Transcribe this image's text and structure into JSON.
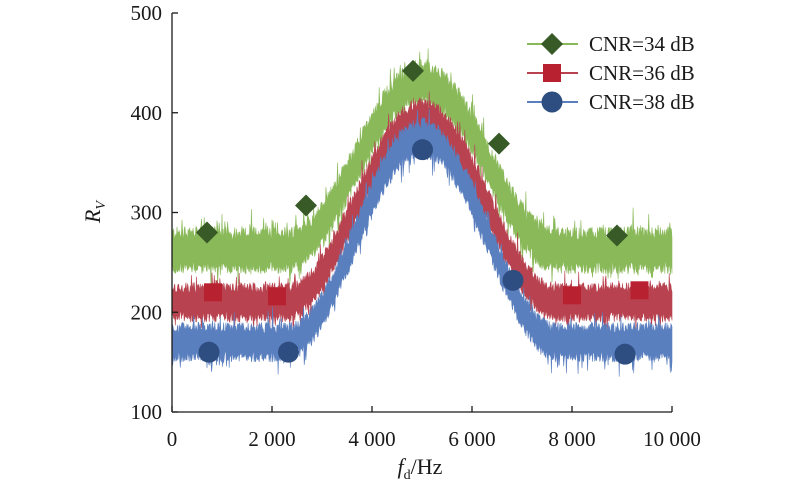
{
  "chart_data": {
    "type": "line",
    "title": "",
    "xlabel": "f_d/Hz",
    "xlabel_parts": {
      "main": "f",
      "sub": "d",
      "unit": "/Hz"
    },
    "ylabel": "R_V",
    "ylabel_parts": {
      "main": "R",
      "sub": "V"
    },
    "xlim": [
      0,
      10000
    ],
    "ylim": [
      100,
      500
    ],
    "xticks": [
      0,
      2000,
      4000,
      6000,
      8000,
      10000
    ],
    "xtick_labels": [
      "0",
      "2 000",
      "4 000",
      "6 000",
      "8 000",
      "10 000"
    ],
    "yticks": [
      100,
      200,
      300,
      400,
      500
    ],
    "ytick_labels": [
      "100",
      "200",
      "300",
      "400",
      "500"
    ],
    "grid": false,
    "legend_position": "top-right",
    "series": [
      {
        "name": "CNR=34 dB",
        "marker": "diamond",
        "color": "#8ab95a",
        "marker_color": "#375a27",
        "baseline": 262,
        "peak": 430,
        "noise_amplitude": 24,
        "markers": [
          {
            "x": 700,
            "y": 280
          },
          {
            "x": 2680,
            "y": 307
          },
          {
            "x": 4820,
            "y": 442
          },
          {
            "x": 6540,
            "y": 369
          },
          {
            "x": 8900,
            "y": 277
          }
        ]
      },
      {
        "name": "CNR=36 dB",
        "marker": "square",
        "color": "#b8424f",
        "marker_color": "#b82230",
        "baseline": 210,
        "peak": 395,
        "noise_amplitude": 20,
        "markers": [
          {
            "x": 820,
            "y": 220
          },
          {
            "x": 2100,
            "y": 216
          },
          {
            "x": 8000,
            "y": 217
          },
          {
            "x": 9350,
            "y": 222
          }
        ]
      },
      {
        "name": "CNR=38 dB",
        "marker": "circle",
        "color": "#5a7fbf",
        "marker_color": "#2e4d80",
        "baseline": 170,
        "peak": 375,
        "noise_amplitude": 20,
        "markers": [
          {
            "x": 740,
            "y": 160
          },
          {
            "x": 2330,
            "y": 160
          },
          {
            "x": 5010,
            "y": 363
          },
          {
            "x": 6820,
            "y": 232
          },
          {
            "x": 9060,
            "y": 158
          }
        ]
      }
    ],
    "transition": {
      "rise_start": 2300,
      "peak_center": 5000,
      "fall_end": 7700
    }
  }
}
